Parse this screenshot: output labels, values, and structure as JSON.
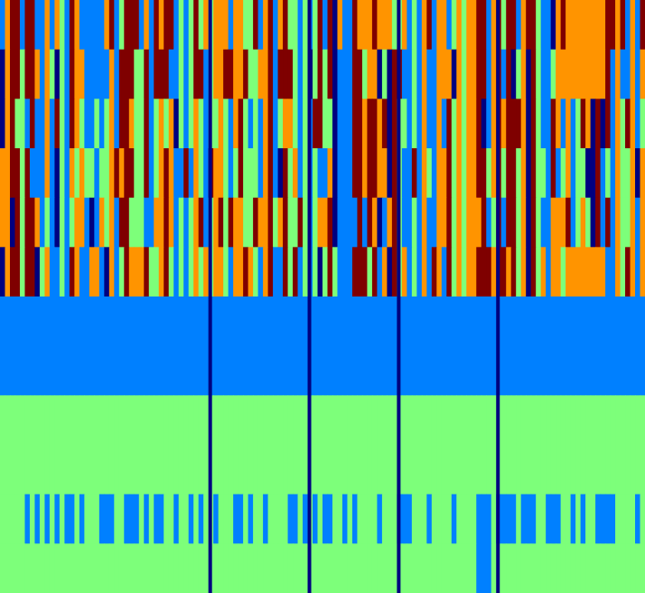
{
  "chart_data": {
    "type": "heatmap",
    "title": "",
    "xlabel": "",
    "ylabel": "",
    "n_cols": 130,
    "n_rows": 12,
    "grid": false,
    "legend": "none",
    "palette": [
      "#00007f",
      "#0080ff",
      "#7dff7a",
      "#ff9400",
      "#7f0000"
    ],
    "sparse_rows": [
      {
        "row": 10,
        "marked_cols": [
          5,
          7,
          9,
          11,
          13,
          14,
          16,
          20,
          21,
          22,
          25,
          26,
          27,
          29,
          31,
          32,
          35,
          38,
          40,
          43,
          47,
          48,
          50,
          53,
          58,
          59,
          61,
          63,
          65,
          66,
          69,
          71,
          76,
          80,
          81,
          82,
          86,
          91,
          96,
          97,
          98,
          100,
          101,
          102,
          103,
          105,
          106,
          107,
          110,
          111,
          112,
          115,
          117,
          120,
          121,
          122,
          123,
          128
        ]
      },
      {
        "row": 11,
        "marked_cols": [
          96,
          97,
          98
        ]
      }
    ],
    "divider_columns": [
      42,
      62,
      80,
      100
    ],
    "divider_color": "#00007f",
    "row_fill": {
      "6": "#0080ff",
      "7": "#0080ff",
      "8": "#7dff7a",
      "9": "#7dff7a",
      "10": "#7dff7a",
      "11": "#7dff7a"
    }
  }
}
